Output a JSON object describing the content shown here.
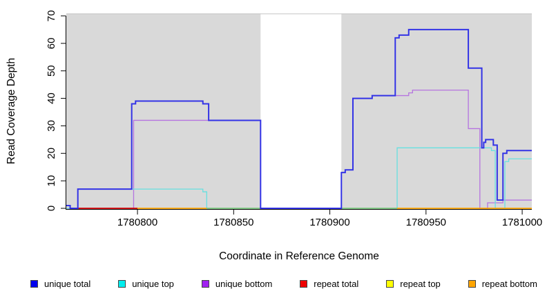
{
  "chart_data": {
    "type": "line",
    "step": true,
    "title": "",
    "xlabel": "Coordinate in Reference Genome",
    "ylabel": "Read Coverage Depth",
    "xlim": [
      1780763,
      1781005
    ],
    "ylim": [
      0,
      70
    ],
    "x_ticks": [
      1780800,
      1780850,
      1780900,
      1780950,
      1781000
    ],
    "y_ticks": [
      0,
      10,
      20,
      30,
      40,
      50,
      60,
      70
    ],
    "grid": false,
    "plot_bg_color": "#D9D9D9",
    "gap_region": {
      "from": 1780864,
      "to": 1780906,
      "color": "#FFFFFF"
    },
    "legend_position": "bottom",
    "series": [
      {
        "name": "unique total",
        "color": "#3333E6",
        "width": 2,
        "points": [
          [
            1780763,
            1
          ],
          [
            1780765,
            0
          ],
          [
            1780769,
            7
          ],
          [
            1780797,
            38
          ],
          [
            1780799,
            39
          ],
          [
            1780834,
            38
          ],
          [
            1780837,
            32
          ],
          [
            1780864,
            0
          ],
          [
            1780906,
            13
          ],
          [
            1780908,
            14
          ],
          [
            1780912,
            40
          ],
          [
            1780922,
            41
          ],
          [
            1780934,
            62
          ],
          [
            1780936,
            63
          ],
          [
            1780941,
            65
          ],
          [
            1780972,
            51
          ],
          [
            1780979,
            22
          ],
          [
            1780980,
            24
          ],
          [
            1780981,
            25
          ],
          [
            1780985,
            23
          ],
          [
            1780987,
            3
          ],
          [
            1780990,
            20
          ],
          [
            1780992,
            21
          ],
          [
            1781005,
            21
          ]
        ]
      },
      {
        "name": "unique top",
        "color": "#66E0E0",
        "width": 1.3,
        "points": [
          [
            1780763,
            0
          ],
          [
            1780769,
            7
          ],
          [
            1780834,
            6
          ],
          [
            1780836,
            0
          ],
          [
            1780935,
            22
          ],
          [
            1780984,
            21
          ],
          [
            1780986,
            0
          ],
          [
            1780991,
            17
          ],
          [
            1780993,
            18
          ],
          [
            1781005,
            18
          ]
        ]
      },
      {
        "name": "unique bottom",
        "color": "#B573E0",
        "width": 1.3,
        "points": [
          [
            1780763,
            0
          ],
          [
            1780798,
            32
          ],
          [
            1780864,
            0
          ],
          [
            1780906,
            13
          ],
          [
            1780908,
            14
          ],
          [
            1780912,
            40
          ],
          [
            1780922,
            41
          ],
          [
            1780941,
            42
          ],
          [
            1780943,
            43
          ],
          [
            1780972,
            29
          ],
          [
            1780978,
            0
          ],
          [
            1780982,
            2
          ],
          [
            1780990,
            3
          ],
          [
            1781005,
            3
          ]
        ]
      },
      {
        "name": "repeat total",
        "color": "#D40000",
        "width": 1.5,
        "points": [
          [
            1780763,
            0
          ],
          [
            1781005,
            0
          ]
        ]
      },
      {
        "name": "repeat top",
        "color": "#FFFF00",
        "width": 1.5,
        "points": [
          [
            1780763,
            0
          ],
          [
            1781005,
            0
          ]
        ]
      },
      {
        "name": "repeat bottom",
        "color": "#FFA500",
        "width": 1.8,
        "points": [
          [
            1780763,
            0
          ],
          [
            1781005,
            0
          ]
        ]
      }
    ],
    "baseline_visible_segments": [
      {
        "color": "#D40000",
        "from": 1780765,
        "to": 1780800
      },
      {
        "color": "#FFA500",
        "from": 1780800,
        "to": 1780836
      },
      {
        "color": "#7CC87C",
        "from": 1780836,
        "to": 1780864
      },
      {
        "color": "#7CC87C",
        "from": 1780906,
        "to": 1780935
      },
      {
        "color": "#FFA500",
        "from": 1780935,
        "to": 1781005
      }
    ],
    "legend": [
      {
        "label": "unique total",
        "color": "#0000EE"
      },
      {
        "label": "unique top",
        "color": "#00EEEE"
      },
      {
        "label": "unique bottom",
        "color": "#A020F0"
      },
      {
        "label": "repeat total",
        "color": "#EE0000"
      },
      {
        "label": "repeat top",
        "color": "#FFFF00"
      },
      {
        "label": "repeat bottom",
        "color": "#FFA500"
      }
    ]
  }
}
